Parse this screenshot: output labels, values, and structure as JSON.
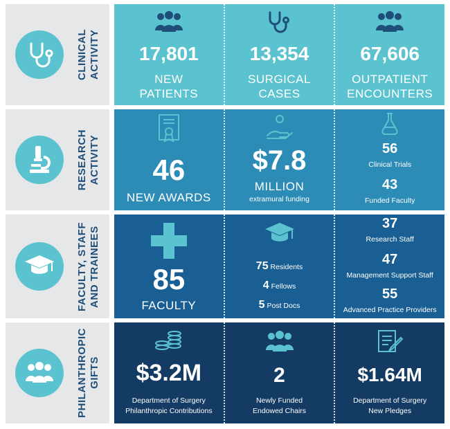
{
  "colors": {
    "side_bg": "#e6e7e8",
    "clinical": "#5bc3cf",
    "research": "#2d8cb6",
    "faculty": "#1a5f93",
    "gifts": "#143b63"
  },
  "clinical": {
    "title_line1": "CLINICAL",
    "title_line2": "ACTIVITY",
    "icon": "stethoscope-icon",
    "stats": [
      {
        "value": "17,801",
        "label1": "NEW",
        "label2": "PATIENTS",
        "icon": "people-group-icon"
      },
      {
        "value": "13,354",
        "label1": "SURGICAL",
        "label2": "CASES",
        "icon": "stethoscope-icon"
      },
      {
        "value": "67,606",
        "label1": "OUTPATIENT",
        "label2": "ENCOUNTERS",
        "icon": "people-group-icon"
      }
    ]
  },
  "research": {
    "title_line1": "RESEARCH",
    "title_line2": "ACTIVITY",
    "icon": "microscope-icon",
    "awards": {
      "value": "46",
      "label": "NEW AWARDS",
      "icon": "certificate-icon"
    },
    "funding": {
      "value": "$7.8",
      "label": "MILLION",
      "sub": "extramural funding",
      "icon": "hand-coin-icon"
    },
    "items": [
      {
        "value": "56",
        "label": "Clinical Trials"
      },
      {
        "value": "43",
        "label": "Funded Faculty"
      }
    ],
    "items_icon": "flask-icon"
  },
  "faculty": {
    "title_line1": "FACULTY, STAFF",
    "title_line2": "AND TRAINEES",
    "icon": "graduation-cap-icon",
    "count": {
      "value": "85",
      "label": "FACULTY",
      "icon": "people-cross-icon"
    },
    "trainees_icon": "graduation-cap-icon",
    "trainees": [
      {
        "value": "75",
        "label": "Residents"
      },
      {
        "value": "4",
        "label": "Fellows"
      },
      {
        "value": "5",
        "label": "Post Docs"
      }
    ],
    "staff": [
      {
        "value": "37",
        "label": "Research Staff"
      },
      {
        "value": "47",
        "label": "Management Support Staff"
      },
      {
        "value": "55",
        "label": "Advanced Practice Providers"
      }
    ]
  },
  "gifts": {
    "title_line1": "PHILANTHROPIC",
    "title_line2": "GIFTS",
    "icon": "people-group-icon",
    "stats": [
      {
        "value": "$3.2M",
        "label1": "Department of Surgery",
        "label2": "Philanthropic Contributions",
        "icon": "coin-stack-icon"
      },
      {
        "value": "2",
        "label1": "Newly Funded",
        "label2": "Endowed Chairs",
        "icon": "people-group-icon"
      },
      {
        "value": "$1.64M",
        "label1": "Department of Surgery",
        "label2": "New Pledges",
        "icon": "document-pen-icon"
      }
    ]
  }
}
